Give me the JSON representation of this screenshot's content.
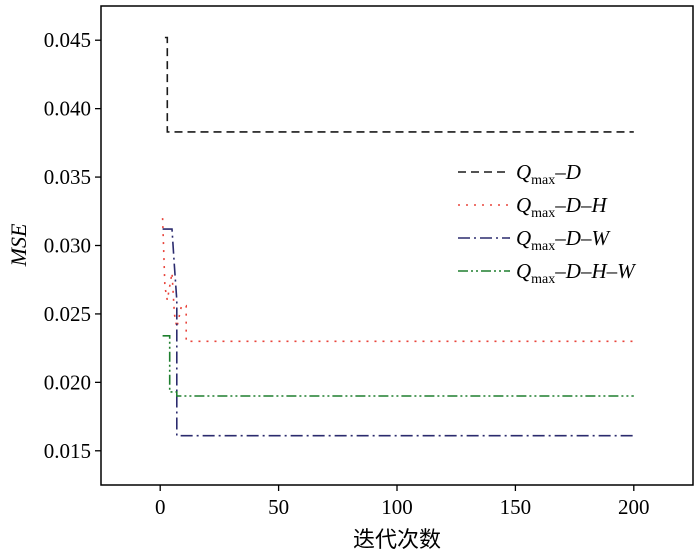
{
  "chart_data": {
    "type": "line",
    "title": "",
    "xlabel": "迭代次数",
    "ylabel": "MSE",
    "xlim": [
      -25,
      225
    ],
    "ylim": [
      0.0125,
      0.0475
    ],
    "xticks": [
      0,
      50,
      100,
      150,
      200
    ],
    "xtick_labels": [
      "0",
      "50",
      "100",
      "150",
      "200"
    ],
    "yticks": [
      0.015,
      0.02,
      0.025,
      0.03,
      0.035,
      0.04,
      0.045
    ],
    "ytick_labels": [
      "0.015",
      "0.020",
      "0.025",
      "0.030",
      "0.035",
      "0.040",
      "0.045"
    ],
    "grid": false,
    "legend_position": "right",
    "series": [
      {
        "name": "Qmax-D",
        "legend": {
          "main": "Q",
          "sub": "max",
          "rest": "–D"
        },
        "color": "#1a1a1a",
        "dash": "8 5",
        "x": [
          2,
          3,
          3,
          200
        ],
        "y": [
          0.0452,
          0.0452,
          0.0383,
          0.0383
        ]
      },
      {
        "name": "Qmax-D-H",
        "legend": {
          "main": "Q",
          "sub": "max",
          "rest": "–D–H"
        },
        "color": "#e8453c",
        "dash": "2 6",
        "x": [
          1,
          2,
          3,
          5,
          6,
          7,
          9,
          10,
          11,
          11,
          200
        ],
        "y": [
          0.032,
          0.027,
          0.026,
          0.028,
          0.025,
          0.024,
          0.0256,
          0.0256,
          0.0256,
          0.023,
          0.023
        ]
      },
      {
        "name": "Qmax-D-W",
        "legend": {
          "main": "Q",
          "sub": "max",
          "rest": "–D–W"
        },
        "color": "#2b2b6e",
        "dash": "12 4 2 4",
        "x": [
          1,
          5,
          6,
          7,
          7,
          200
        ],
        "y": [
          0.0312,
          0.0312,
          0.0285,
          0.026,
          0.0161,
          0.0161
        ]
      },
      {
        "name": "Qmax-D-H-W",
        "legend": {
          "main": "Q",
          "sub": "max",
          "rest": "–D–H–W"
        },
        "color": "#1e7f2e",
        "dash": "10 3 2 3 2 3",
        "x": [
          1,
          4,
          4,
          7,
          7,
          200
        ],
        "y": [
          0.0234,
          0.0234,
          0.0193,
          0.0193,
          0.019,
          0.019
        ]
      }
    ]
  }
}
